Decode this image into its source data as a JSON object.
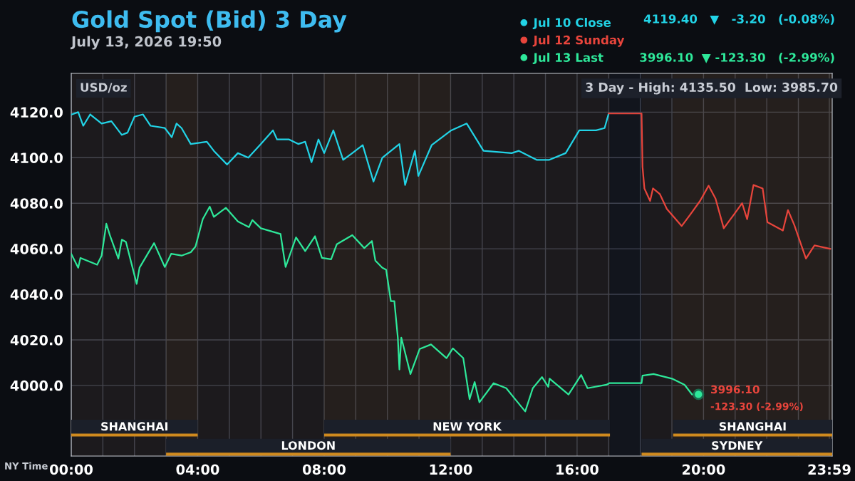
{
  "chart_data": {
    "type": "line",
    "title": "Gold Spot (Bid) 3 Day",
    "subtitle": "July 13, 2026 19:50",
    "xlim": [
      0,
      24.07
    ],
    "ylim": [
      3969,
      4137
    ],
    "xticks": [
      {
        "value": 0,
        "label": "00:00"
      },
      {
        "value": 1,
        "label": null
      },
      {
        "value": 2,
        "label": null
      },
      {
        "value": 3,
        "label": null
      },
      {
        "value": 4,
        "label": "04:00"
      },
      {
        "value": 5,
        "label": null
      },
      {
        "value": 6,
        "label": null
      },
      {
        "value": 7,
        "label": null
      },
      {
        "value": 8,
        "label": "08:00"
      },
      {
        "value": 9,
        "label": null
      },
      {
        "value": 10,
        "label": null
      },
      {
        "value": 11,
        "label": null
      },
      {
        "value": 12,
        "label": "12:00"
      },
      {
        "value": 13,
        "label": null
      },
      {
        "value": 14,
        "label": null
      },
      {
        "value": 15,
        "label": null
      },
      {
        "value": 16,
        "label": "16:00"
      },
      {
        "value": 17,
        "label": null
      },
      {
        "value": 18,
        "label": null
      },
      {
        "value": 19,
        "label": null
      },
      {
        "value": 20,
        "label": "20:00"
      },
      {
        "value": 21,
        "label": null
      },
      {
        "value": 22,
        "label": null
      },
      {
        "value": 23,
        "label": null
      },
      {
        "value": 23.98,
        "label": "23:59"
      }
    ],
    "yticks": [
      {
        "value": 4000,
        "label": "4000.0"
      },
      {
        "value": 4020,
        "label": "4020.0"
      },
      {
        "value": 4040,
        "label": "4040.0"
      },
      {
        "value": 4060,
        "label": "4060.0"
      },
      {
        "value": 4080,
        "label": "4080.0"
      },
      {
        "value": 4100,
        "label": "4100.0"
      },
      {
        "value": 4120,
        "label": "4120.0"
      }
    ],
    "grid": true,
    "legend": "top right",
    "line_style": "solid",
    "series": [
      {
        "name": "Jul 10 Close",
        "color": "#22d3e6",
        "x": [
          0,
          0.22,
          0.38,
          0.6,
          0.96,
          1.27,
          1.6,
          1.78,
          2.0,
          2.27,
          2.51,
          2.96,
          3.18,
          3.33,
          3.49,
          3.78,
          4.29,
          4.51,
          4.93,
          5.27,
          5.6,
          6.0,
          6.38,
          6.51,
          6.89,
          7.18,
          7.4,
          7.6,
          7.82,
          8.0,
          8.29,
          8.6,
          8.89,
          9.22,
          9.56,
          9.84,
          10.38,
          10.56,
          10.87,
          10.98,
          11.4,
          12.02,
          12.51,
          13.04,
          13.93,
          14.16,
          14.73,
          15.11,
          15.64,
          16.07,
          16.6,
          16.87,
          17.0
        ],
        "values": [
          4118.9,
          4120,
          4114,
          4119,
          4115,
          4116,
          4110,
          4111,
          4118,
          4119,
          4114,
          4113,
          4109,
          4115,
          4113,
          4106,
          4107,
          4103,
          4097,
          4102,
          4100,
          4106,
          4112,
          4108,
          4108,
          4106,
          4107,
          4098,
          4108,
          4102,
          4112,
          4099,
          4102,
          4105.5,
          4089.5,
          4100,
          4106,
          4088,
          4103,
          4092,
          4105.5,
          4112,
          4115,
          4103,
          4102,
          4103,
          4099,
          4099,
          4102,
          4112,
          4112,
          4113,
          4119.4
        ]
      },
      {
        "name": "Jul 12 Sunday",
        "color": "#e8453c",
        "x": [
          17.0,
          18.04,
          18.07,
          18.13,
          18.31,
          18.4,
          18.62,
          18.84,
          19.31,
          19.58,
          19.89,
          20.16,
          20.38,
          20.64,
          20.96,
          21.22,
          21.38,
          21.58,
          21.87,
          22.02,
          22.51,
          22.67,
          22.87,
          23.24,
          23.51,
          24.0
        ],
        "values": [
          4119.4,
          4119.4,
          4096,
          4086.5,
          4081,
          4086.5,
          4084,
          4077.5,
          4070,
          4075,
          4081,
          4087.7,
          4082,
          4069,
          4075,
          4080,
          4073,
          4088,
          4086.5,
          4071.7,
          4068,
          4077,
          4070.5,
          4055.7,
          4061.5,
          4060
        ]
      },
      {
        "name": "Jul 13 Last",
        "color": "#2ee89a",
        "x": [
          0,
          0.22,
          0.29,
          0.82,
          0.96,
          1.11,
          1.22,
          1.49,
          1.6,
          1.73,
          2.07,
          2.16,
          2.62,
          2.96,
          3.16,
          3.49,
          3.78,
          3.93,
          4.16,
          4.38,
          4.51,
          4.89,
          5.27,
          5.62,
          5.73,
          6.0,
          6.62,
          6.78,
          7.11,
          7.4,
          7.71,
          7.93,
          8.22,
          8.4,
          8.89,
          9.27,
          9.51,
          9.62,
          9.84,
          9.96,
          10.11,
          10.22,
          10.33,
          10.38,
          10.44,
          10.73,
          11.02,
          11.38,
          11.87,
          12.07,
          12.4,
          12.6,
          12.76,
          12.91,
          13.36,
          13.76,
          14.04,
          14.36,
          14.6,
          14.89,
          15.09,
          15.13,
          15.73,
          16.13,
          16.33,
          16.93,
          17.02,
          18.04,
          18.07,
          18.42,
          19.0,
          19.4,
          19.64,
          19.84
        ],
        "values": [
          4057.8,
          4051.7,
          4056,
          4053,
          4057,
          4071,
          4066,
          4055.7,
          4064,
          4063,
          4044.6,
          4051.7,
          4062.5,
          4052,
          4057.8,
          4057,
          4058.5,
          4061,
          4073,
          4078.5,
          4074,
          4078,
          4072,
          4069.5,
          4072.6,
          4069,
          4066.5,
          4052,
          4065,
          4059,
          4065.5,
          4056,
          4055.4,
          4062,
          4066,
          4060.3,
          4063.4,
          4054.8,
          4051.7,
          4050.8,
          4037,
          4037,
          4021,
          4007,
          4021,
          4005,
          4016,
          4018,
          4012,
          4016.3,
          4012,
          3994,
          4001.5,
          3992.6,
          4001,
          3998.8,
          3994,
          3988.6,
          3998.8,
          4003.7,
          3999.4,
          4003,
          3996,
          4004.6,
          3998.8,
          4000.3,
          4001,
          4001,
          4004.3,
          4005,
          4003,
          4000.3,
          3996,
          3996.1
        ]
      },
      {
        "type": "scatter",
        "marker": "circle",
        "color": "#2ee89a",
        "x": [
          19.84
        ],
        "values": [
          3996.1
        ]
      }
    ],
    "bands": [
      {
        "axis": "x",
        "from": 0,
        "to": 4,
        "label": "SHANGHAI",
        "color": "#d08a1e"
      },
      {
        "axis": "x",
        "from": 3,
        "to": 12,
        "label": "LONDON",
        "color": "#d08a1e"
      },
      {
        "axis": "x",
        "from": 8,
        "to": 17.04,
        "label": "NEW YORK",
        "color": "#d08a1e"
      },
      {
        "axis": "x",
        "from": 19.04,
        "to": 24.07,
        "label": "SHANGHAI",
        "color": "#d08a1e"
      },
      {
        "axis": "x",
        "from": 18.04,
        "to": 24.07,
        "label": "SYDNEY",
        "color": "#d08a1e"
      }
    ],
    "annotations": [
      "USD/oz",
      "3 Day - High: 4135.50  Low: 3985.70",
      "NY Time",
      "4119.40   ▼   -3.20   (-0.08%)",
      "3996.10  ▼ -123.30   (-2.99%)",
      {
        "text": "3996.10",
        "x": 19.84,
        "y": 3996.1
      },
      {
        "text": "-123.30 (-2.99%)",
        "x": 19.84,
        "y": 3996.1
      }
    ]
  }
}
